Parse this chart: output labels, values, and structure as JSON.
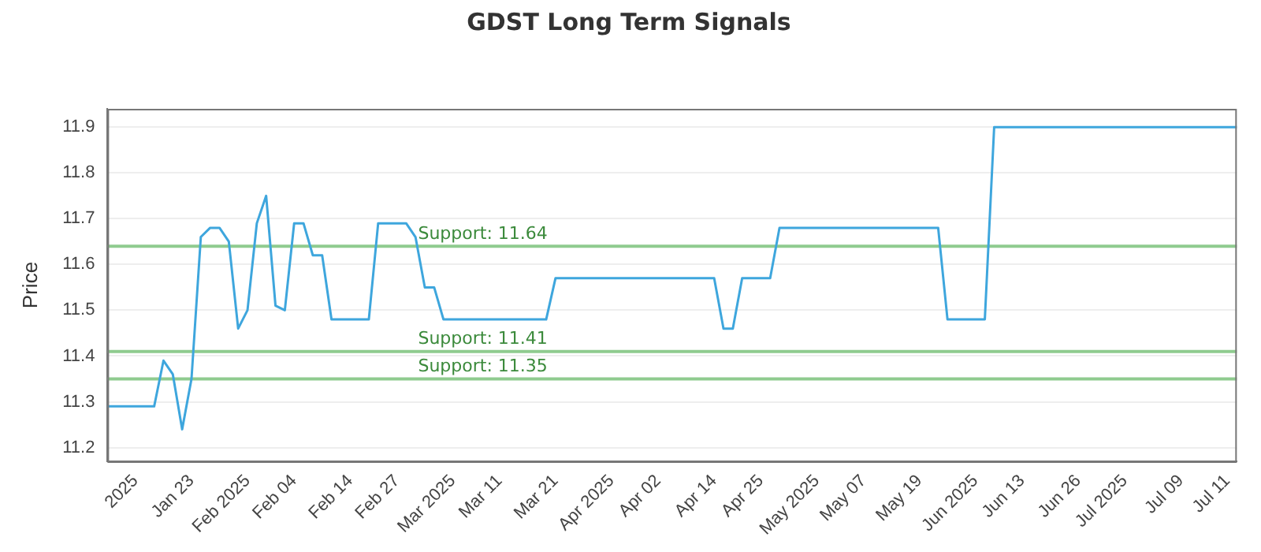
{
  "chart_data": {
    "type": "line",
    "title": "GDST Long Term Signals",
    "ylabel": "Price",
    "categories": [
      null,
      null,
      null,
      "2025",
      null,
      null,
      null,
      null,
      null,
      "Jan 23",
      null,
      null,
      null,
      null,
      null,
      "Feb 2025",
      null,
      null,
      null,
      null,
      "Feb 04",
      null,
      null,
      null,
      null,
      null,
      "Feb 14",
      null,
      null,
      null,
      null,
      "Feb 27",
      null,
      null,
      null,
      null,
      null,
      "Mar 2025",
      null,
      null,
      null,
      null,
      "Mar 11",
      null,
      null,
      null,
      null,
      null,
      "Mar 21",
      null,
      null,
      null,
      null,
      null,
      "Apr 2025",
      null,
      null,
      null,
      null,
      "Apr 02",
      null,
      null,
      null,
      null,
      null,
      "Apr 14",
      null,
      null,
      null,
      null,
      "Apr 25",
      null,
      null,
      null,
      null,
      null,
      "May 2025",
      null,
      null,
      null,
      null,
      "May 07",
      null,
      null,
      null,
      null,
      null,
      "May 19",
      null,
      null,
      null,
      null,
      null,
      "Jun 2025",
      null,
      null,
      null,
      null,
      "Jun 13",
      null,
      null,
      null,
      null,
      null,
      "Jun 26",
      null,
      null,
      null,
      null,
      "Jul 2025",
      null,
      null,
      null,
      null,
      null,
      "Jul 09",
      null,
      null,
      null,
      null,
      "Jul 11",
      null
    ],
    "series": [
      {
        "color": "#3ea6dd",
        "values": [
          11.29,
          11.29,
          11.29,
          11.29,
          11.29,
          11.29,
          11.39,
          11.36,
          11.24,
          11.35,
          11.66,
          11.68,
          11.68,
          11.65,
          11.46,
          11.5,
          11.69,
          11.75,
          11.51,
          11.5,
          11.69,
          11.69,
          11.62,
          11.62,
          11.48,
          11.48,
          11.48,
          11.48,
          11.48,
          11.69,
          11.69,
          11.69,
          11.69,
          11.66,
          11.55,
          11.55,
          11.48,
          11.48,
          11.48,
          11.48,
          11.48,
          11.48,
          11.48,
          11.48,
          11.48,
          11.48,
          11.48,
          11.48,
          11.57,
          11.57,
          11.57,
          11.57,
          11.57,
          11.57,
          11.57,
          11.57,
          11.57,
          11.57,
          11.57,
          11.57,
          11.57,
          11.57,
          11.57,
          11.57,
          11.57,
          11.57,
          11.46,
          11.46,
          11.57,
          11.57,
          11.57,
          11.57,
          11.68,
          11.68,
          11.68,
          11.68,
          11.68,
          11.68,
          11.68,
          11.68,
          11.68,
          11.68,
          11.68,
          11.68,
          11.68,
          11.68,
          11.68,
          11.68,
          11.68,
          11.68,
          11.48,
          11.48,
          11.48,
          11.48,
          11.48,
          11.9,
          11.9,
          11.9,
          11.9,
          11.9,
          11.9,
          11.9,
          11.9,
          11.9,
          11.9,
          11.9,
          11.9,
          11.9,
          11.9,
          11.9,
          11.9,
          11.9,
          11.9,
          11.9,
          11.9,
          11.9,
          11.9,
          11.9,
          11.9,
          11.9,
          11.9,
          11.9
        ]
      }
    ],
    "ylim": [
      11.17,
      11.94
    ],
    "yticks": [
      11.2,
      11.3,
      11.4,
      11.5,
      11.6,
      11.7,
      11.8,
      11.9
    ],
    "ref_lines": [
      {
        "axis": "y",
        "value": 11.64,
        "label": "Support: 11.64",
        "color": "#8fcb8f"
      },
      {
        "axis": "y",
        "value": 11.41,
        "label": "Support: 11.41",
        "color": "#8fcb8f"
      },
      {
        "axis": "y",
        "value": 11.35,
        "label": "Support: 11.35",
        "color": "#8fcb8f"
      }
    ],
    "grid": "y",
    "legend": false,
    "marker": "none",
    "line_style": "solid"
  }
}
